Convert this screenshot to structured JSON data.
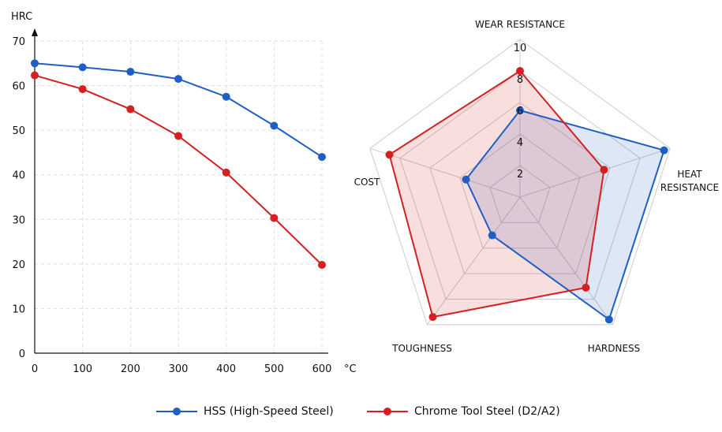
{
  "chart_data": [
    {
      "type": "line",
      "title": "",
      "ylabel": "HRC",
      "xlabel": "°C",
      "x": [
        0,
        100,
        200,
        300,
        400,
        500,
        600
      ],
      "xticks": [
        "0",
        "100",
        "200",
        "300",
        "400",
        "500",
        "600"
      ],
      "yticks": [
        "0",
        "10",
        "20",
        "30",
        "40",
        "50",
        "60",
        "70"
      ],
      "xlim": [
        0,
        600
      ],
      "ylim": [
        0,
        70
      ],
      "grid": true,
      "series": [
        {
          "name": "HSS (High-Speed Steel)",
          "color": "#1f5fc4",
          "values": [
            65,
            64.1,
            63.1,
            61.5,
            57.5,
            51,
            44
          ]
        },
        {
          "name": "Chrome Tool Steel (D2/A2)",
          "color": "#d42020",
          "values": [
            62.3,
            59.2,
            54.7,
            48.7,
            40.5,
            30.3,
            19.8
          ]
        }
      ]
    },
    {
      "type": "radar",
      "axes": [
        "WEAR RESISTANCE",
        "HEAT\nRESISTANCE",
        "HARDNESS",
        "TOUGHNESS",
        "COST"
      ],
      "rticks": [
        "2",
        "4",
        "6",
        "8",
        "10"
      ],
      "rlim": [
        0,
        10
      ],
      "series": [
        {
          "name": "HSS (High-Speed Steel)",
          "color": "#1f5fc4",
          "values": [
            5.5,
            9.6,
            9.6,
            3.0,
            3.6
          ]
        },
        {
          "name": "Chrome Tool Steel (D2/A2)",
          "color": "#d42020",
          "values": [
            8.0,
            5.6,
            7.1,
            9.4,
            8.7
          ]
        }
      ]
    }
  ],
  "legend": [
    {
      "label": "HSS (High-Speed Steel)",
      "color": "#1f5fc4"
    },
    {
      "label": "Chrome Tool Steel (D2/A2)",
      "color": "#d42020"
    }
  ]
}
